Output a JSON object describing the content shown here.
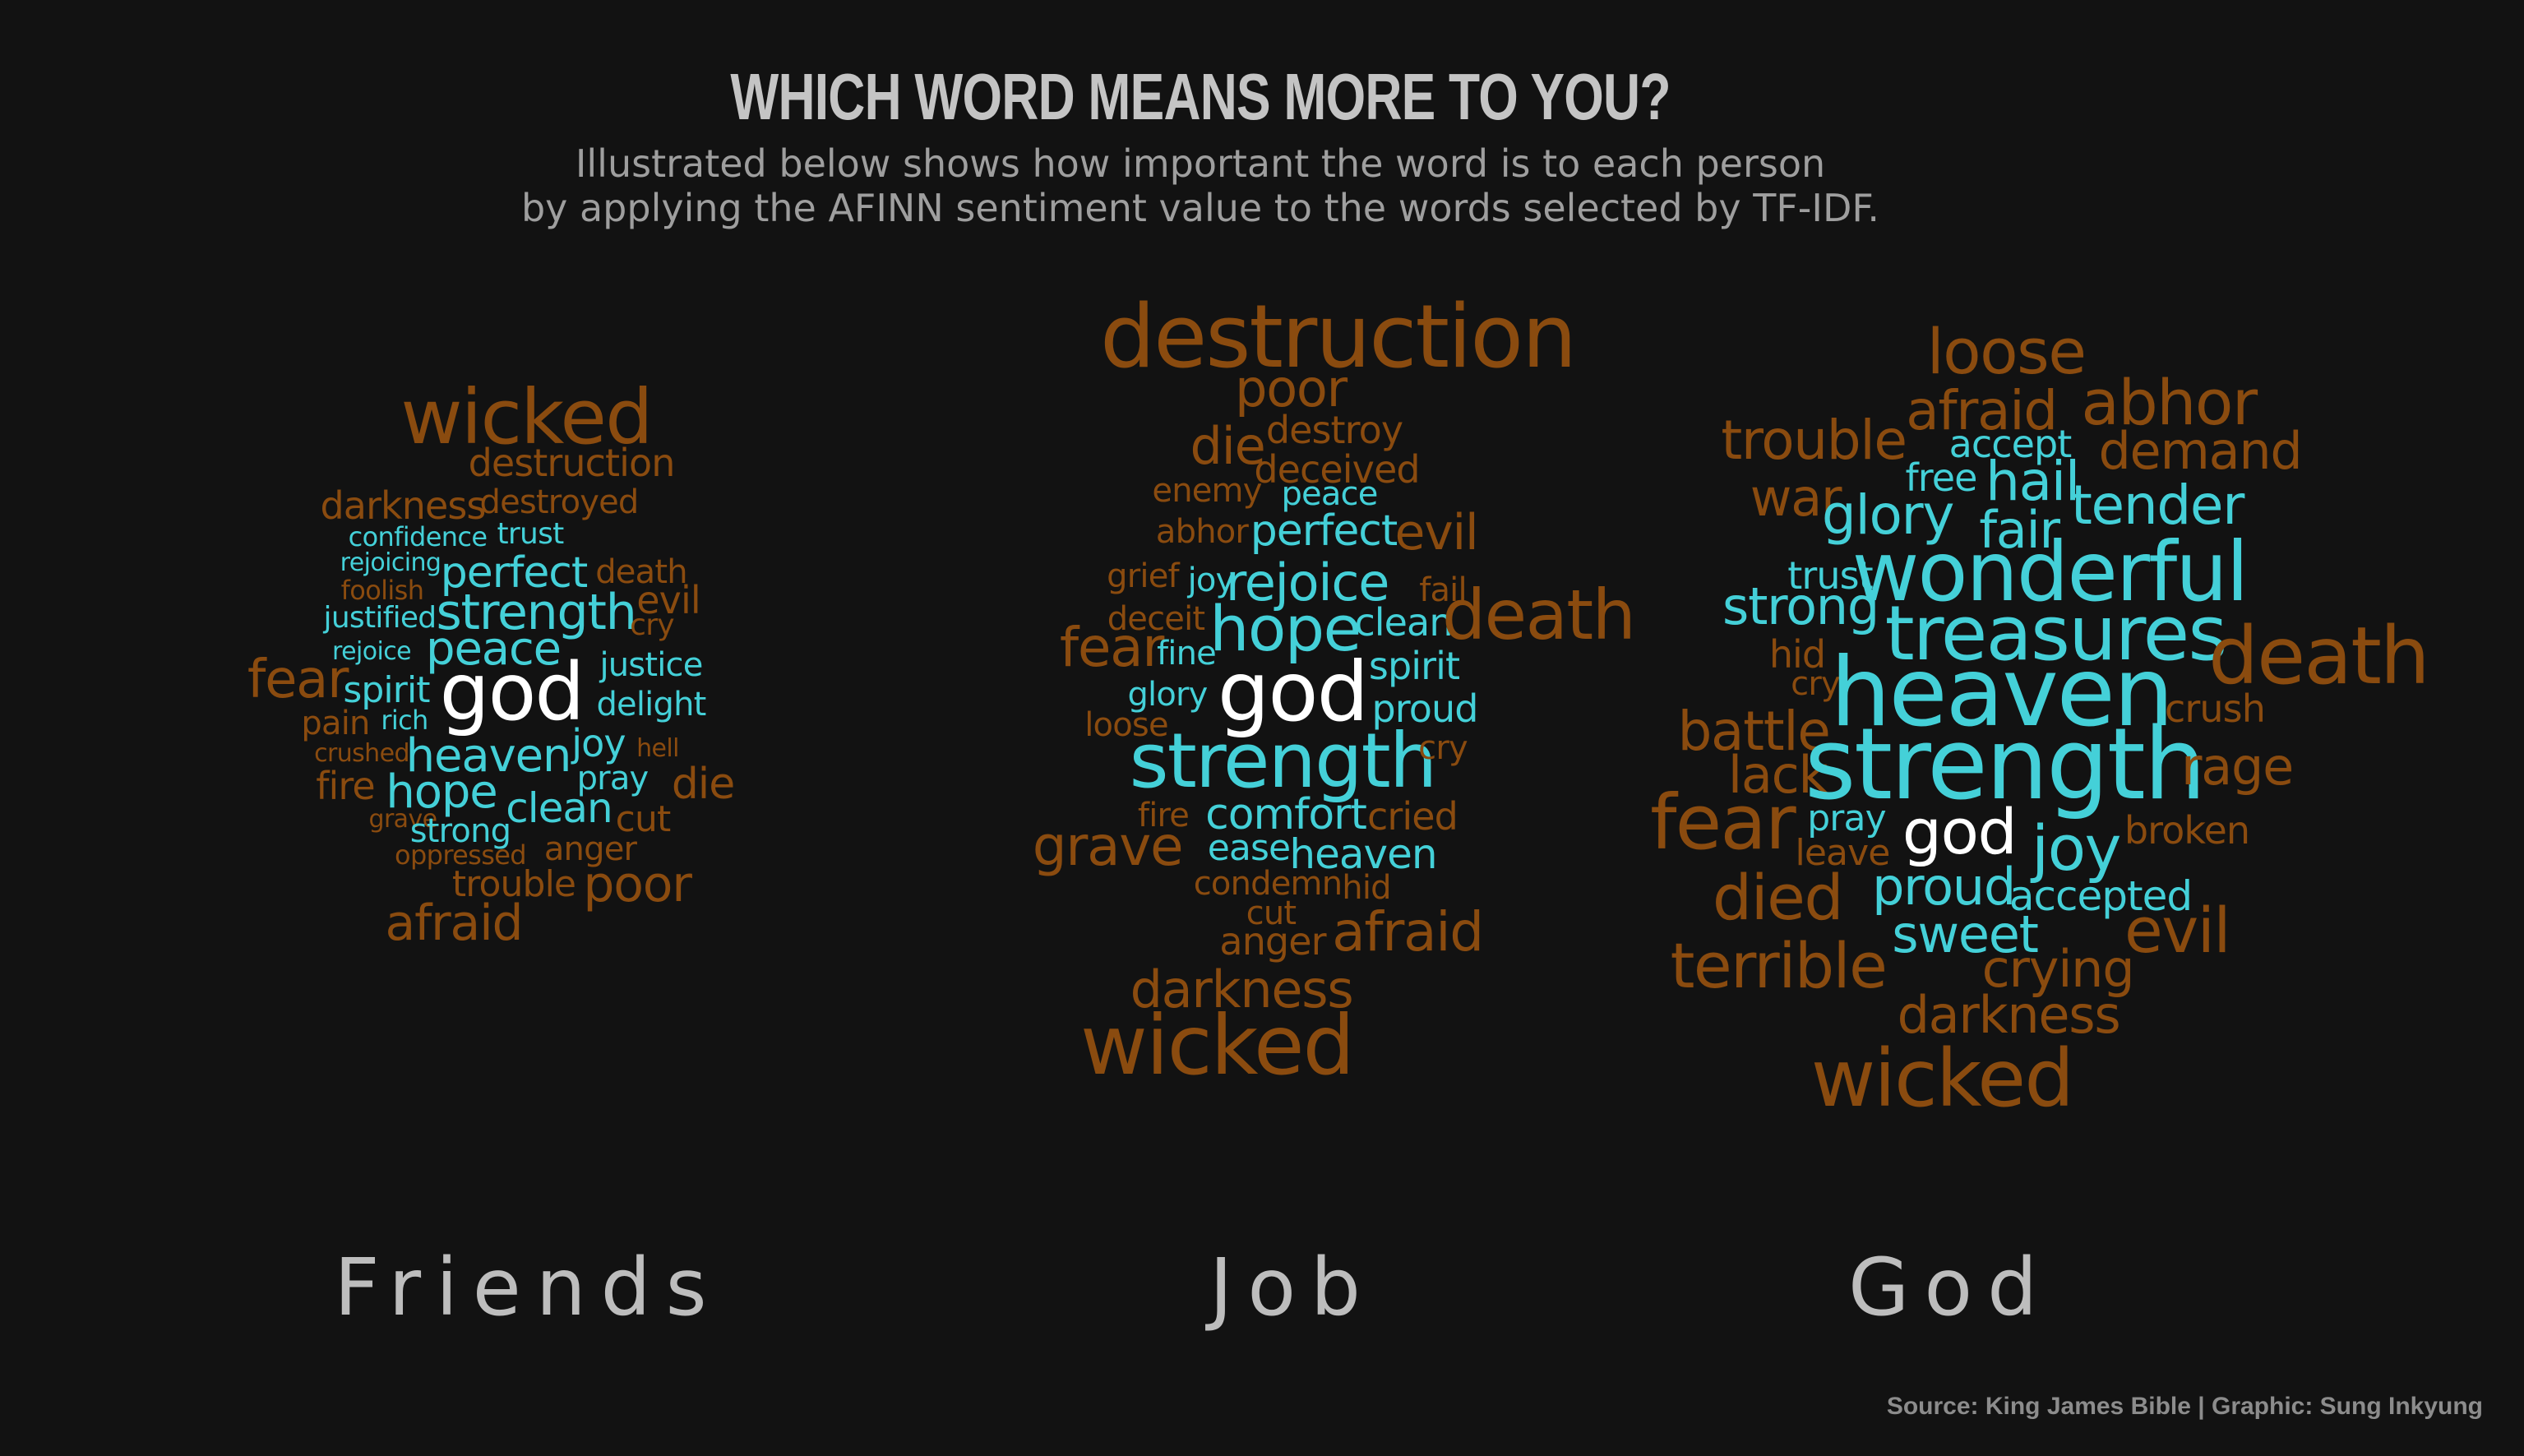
{
  "header": {
    "title": "WHICH WORD MEANS MORE TO YOU?",
    "subtitle_line1": "Illustrated below shows how important the word is to each person",
    "subtitle_line2": "by applying the AFINN sentiment value to the words selected by TF-IDF."
  },
  "colors": {
    "positive": "#44d0d8",
    "negative": "#8a4b0f",
    "highlight": "#ffffff",
    "background": "#121212"
  },
  "panels": [
    {
      "label": "Friends",
      "words": [
        {
          "text": "wicked",
          "tone": "negative"
        },
        {
          "text": "destruction",
          "tone": "negative"
        },
        {
          "text": "darkness",
          "tone": "negative"
        },
        {
          "text": "destroyed",
          "tone": "negative"
        },
        {
          "text": "confidence",
          "tone": "positive"
        },
        {
          "text": "trust",
          "tone": "positive"
        },
        {
          "text": "rejoicing",
          "tone": "positive"
        },
        {
          "text": "perfect",
          "tone": "positive"
        },
        {
          "text": "death",
          "tone": "negative"
        },
        {
          "text": "foolish",
          "tone": "negative"
        },
        {
          "text": "evil",
          "tone": "negative"
        },
        {
          "text": "justified",
          "tone": "positive"
        },
        {
          "text": "strength",
          "tone": "positive"
        },
        {
          "text": "cry",
          "tone": "negative"
        },
        {
          "text": "rejoice",
          "tone": "positive"
        },
        {
          "text": "peace",
          "tone": "positive"
        },
        {
          "text": "justice",
          "tone": "positive"
        },
        {
          "text": "fear",
          "tone": "negative"
        },
        {
          "text": "spirit",
          "tone": "positive"
        },
        {
          "text": "god",
          "tone": "highlight"
        },
        {
          "text": "delight",
          "tone": "positive"
        },
        {
          "text": "pain",
          "tone": "negative"
        },
        {
          "text": "rich",
          "tone": "positive"
        },
        {
          "text": "joy",
          "tone": "positive"
        },
        {
          "text": "crushed",
          "tone": "negative"
        },
        {
          "text": "heaven",
          "tone": "positive"
        },
        {
          "text": "hell",
          "tone": "negative"
        },
        {
          "text": "pray",
          "tone": "positive"
        },
        {
          "text": "fire",
          "tone": "negative"
        },
        {
          "text": "hope",
          "tone": "positive"
        },
        {
          "text": "die",
          "tone": "negative"
        },
        {
          "text": "clean",
          "tone": "positive"
        },
        {
          "text": "grave",
          "tone": "negative"
        },
        {
          "text": "cut",
          "tone": "negative"
        },
        {
          "text": "strong",
          "tone": "positive"
        },
        {
          "text": "oppressed",
          "tone": "negative"
        },
        {
          "text": "anger",
          "tone": "negative"
        },
        {
          "text": "trouble",
          "tone": "negative"
        },
        {
          "text": "poor",
          "tone": "negative"
        },
        {
          "text": "afraid",
          "tone": "negative"
        }
      ]
    },
    {
      "label": "Job",
      "words": [
        {
          "text": "destruction",
          "tone": "negative"
        },
        {
          "text": "poor",
          "tone": "negative"
        },
        {
          "text": "die",
          "tone": "negative"
        },
        {
          "text": "destroy",
          "tone": "negative"
        },
        {
          "text": "deceived",
          "tone": "negative"
        },
        {
          "text": "enemy",
          "tone": "negative"
        },
        {
          "text": "peace",
          "tone": "positive"
        },
        {
          "text": "abhor",
          "tone": "negative"
        },
        {
          "text": "perfect",
          "tone": "positive"
        },
        {
          "text": "evil",
          "tone": "negative"
        },
        {
          "text": "grief",
          "tone": "negative"
        },
        {
          "text": "joy",
          "tone": "positive"
        },
        {
          "text": "rejoice",
          "tone": "positive"
        },
        {
          "text": "fail",
          "tone": "negative"
        },
        {
          "text": "deceit",
          "tone": "negative"
        },
        {
          "text": "hope",
          "tone": "positive"
        },
        {
          "text": "clean",
          "tone": "positive"
        },
        {
          "text": "death",
          "tone": "negative"
        },
        {
          "text": "fear",
          "tone": "negative"
        },
        {
          "text": "fine",
          "tone": "positive"
        },
        {
          "text": "spirit",
          "tone": "positive"
        },
        {
          "text": "glory",
          "tone": "positive"
        },
        {
          "text": "god",
          "tone": "highlight"
        },
        {
          "text": "proud",
          "tone": "positive"
        },
        {
          "text": "loose",
          "tone": "negative"
        },
        {
          "text": "strength",
          "tone": "positive"
        },
        {
          "text": "cry",
          "tone": "negative"
        },
        {
          "text": "fire",
          "tone": "negative"
        },
        {
          "text": "comfort",
          "tone": "positive"
        },
        {
          "text": "cried",
          "tone": "negative"
        },
        {
          "text": "grave",
          "tone": "negative"
        },
        {
          "text": "ease",
          "tone": "positive"
        },
        {
          "text": "heaven",
          "tone": "positive"
        },
        {
          "text": "condemn",
          "tone": "negative"
        },
        {
          "text": "hid",
          "tone": "negative"
        },
        {
          "text": "cut",
          "tone": "negative"
        },
        {
          "text": "anger",
          "tone": "negative"
        },
        {
          "text": "afraid",
          "tone": "negative"
        },
        {
          "text": "darkness",
          "tone": "negative"
        },
        {
          "text": "wicked",
          "tone": "negative"
        }
      ]
    },
    {
      "label": "God",
      "words": [
        {
          "text": "loose",
          "tone": "negative"
        },
        {
          "text": "afraid",
          "tone": "negative"
        },
        {
          "text": "abhor",
          "tone": "negative"
        },
        {
          "text": "trouble",
          "tone": "negative"
        },
        {
          "text": "accept",
          "tone": "positive"
        },
        {
          "text": "demand",
          "tone": "negative"
        },
        {
          "text": "free",
          "tone": "positive"
        },
        {
          "text": "hail",
          "tone": "positive"
        },
        {
          "text": "war",
          "tone": "negative"
        },
        {
          "text": "glory",
          "tone": "positive"
        },
        {
          "text": "tender",
          "tone": "positive"
        },
        {
          "text": "fair",
          "tone": "positive"
        },
        {
          "text": "trust",
          "tone": "positive"
        },
        {
          "text": "wonderful",
          "tone": "positive"
        },
        {
          "text": "strong",
          "tone": "positive"
        },
        {
          "text": "treasures",
          "tone": "positive"
        },
        {
          "text": "hid",
          "tone": "negative"
        },
        {
          "text": "death",
          "tone": "negative"
        },
        {
          "text": "cry",
          "tone": "negative"
        },
        {
          "text": "heaven",
          "tone": "positive"
        },
        {
          "text": "crush",
          "tone": "negative"
        },
        {
          "text": "battle",
          "tone": "negative"
        },
        {
          "text": "lack",
          "tone": "negative"
        },
        {
          "text": "strength",
          "tone": "positive"
        },
        {
          "text": "rage",
          "tone": "negative"
        },
        {
          "text": "fear",
          "tone": "negative"
        },
        {
          "text": "pray",
          "tone": "positive"
        },
        {
          "text": "god",
          "tone": "highlight"
        },
        {
          "text": "joy",
          "tone": "positive"
        },
        {
          "text": "broken",
          "tone": "negative"
        },
        {
          "text": "leave",
          "tone": "negative"
        },
        {
          "text": "died",
          "tone": "negative"
        },
        {
          "text": "proud",
          "tone": "positive"
        },
        {
          "text": "accepted",
          "tone": "positive"
        },
        {
          "text": "sweet",
          "tone": "positive"
        },
        {
          "text": "evil",
          "tone": "negative"
        },
        {
          "text": "terrible",
          "tone": "negative"
        },
        {
          "text": "crying",
          "tone": "negative"
        },
        {
          "text": "darkness",
          "tone": "negative"
        },
        {
          "text": "wicked",
          "tone": "negative"
        }
      ]
    }
  ],
  "caption": "Source: King James Bible | Graphic: Sung Inkyung"
}
